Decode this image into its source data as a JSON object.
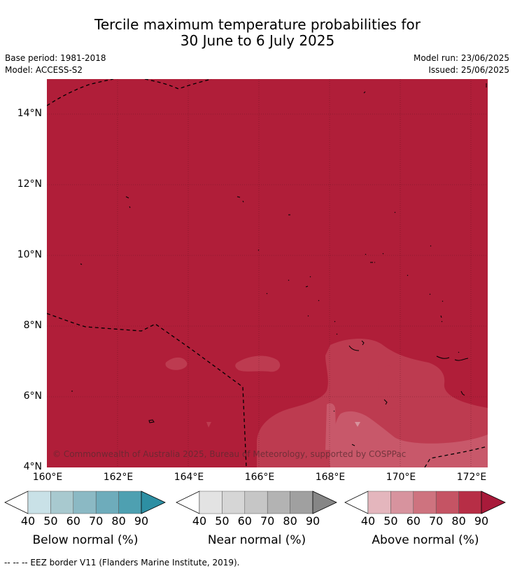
{
  "title_line1": "Tercile maximum temperature probabilities for",
  "title_line2": "30 June to 6 July 2025",
  "base_period": "Base period: 1981-2018",
  "model": "Model: ACCESS-S2",
  "model_run": "Model run: 23/06/2025",
  "issued": "Issued: 25/06/2025",
  "lat_labels": [
    "14°N",
    "12°N",
    "10°N",
    "8°N",
    "6°N",
    "4°N"
  ],
  "lon_labels": [
    "160°E",
    "162°E",
    "164°E",
    "166°E",
    "168°E",
    "170°E",
    "172°E"
  ],
  "credit": "© Commonwealth of Australia 2025, Bureau of Meteorology, supported by COSPPac",
  "colorbars": [
    {
      "name": "Below normal (%)",
      "ticks": [
        "40",
        "50",
        "60",
        "70",
        "80",
        "90"
      ],
      "colors": [
        "#c9e1e7",
        "#a8c9cf",
        "#8bb9c4",
        "#6eacbb",
        "#4ea0b1",
        "#2d8fa3"
      ]
    },
    {
      "name": "Near normal (%)",
      "ticks": [
        "40",
        "50",
        "60",
        "70",
        "80",
        "90"
      ],
      "colors": [
        "#e3e3e3",
        "#d6d6d6",
        "#c6c6c6",
        "#b3b3b3",
        "#a0a0a0",
        "#868686"
      ]
    },
    {
      "name": "Above normal (%)",
      "ticks": [
        "40",
        "50",
        "60",
        "70",
        "80",
        "90"
      ],
      "colors": [
        "#e4b6bd",
        "#d7939e",
        "#ce737f",
        "#c55464",
        "#b72e46",
        "#a81a3a"
      ]
    }
  ],
  "footnote": "--  --  -- EEZ border V11 (Flanders Marine Institute, 2019).",
  "colors": {
    "dominant_fill": "#b01e39",
    "band_70": "#c3495c",
    "band_60": "#cc6677",
    "gridline": "#4a1018",
    "border": "#000000"
  }
}
